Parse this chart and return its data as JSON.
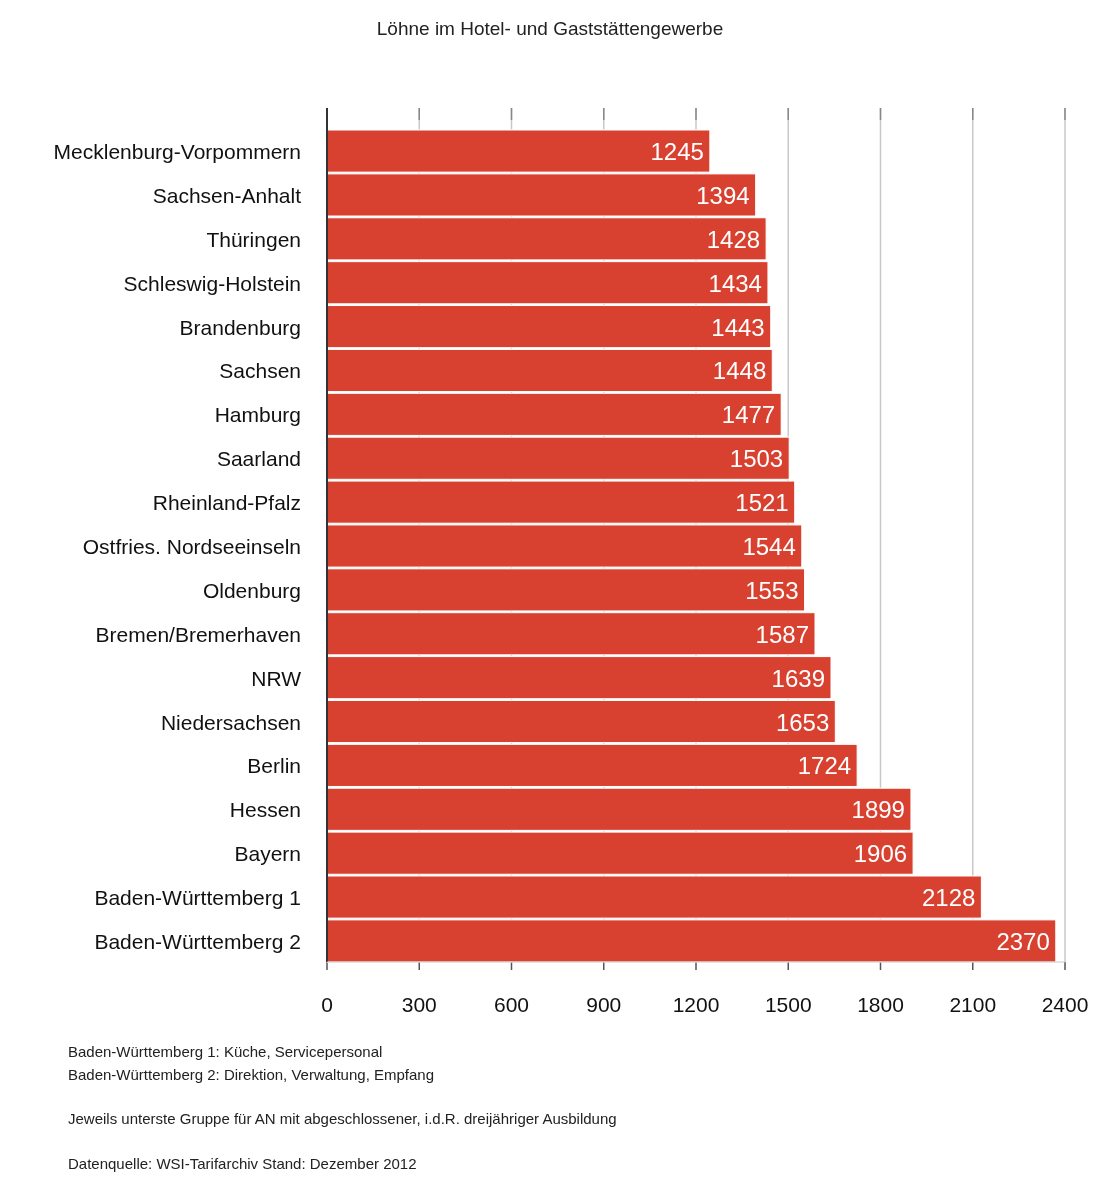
{
  "chart_data": {
    "type": "bar",
    "orientation": "horizontal",
    "title": "Löhne im Hotel- und Gaststättengewerbe",
    "categories": [
      "Mecklenburg-Vorpommern",
      "Sachsen-Anhalt",
      "Thüringen",
      "Schleswig-Holstein",
      "Brandenburg",
      "Sachsen",
      "Hamburg",
      "Saarland",
      "Rheinland-Pfalz",
      "Ostfries. Nordseeinseln",
      "Oldenburg",
      "Bremen/Bremerhaven",
      "NRW",
      "Niedersachsen",
      "Berlin",
      "Hessen",
      "Bayern",
      "Baden-Württemberg 1",
      "Baden-Württemberg 2"
    ],
    "values": [
      1245,
      1394,
      1428,
      1434,
      1443,
      1448,
      1477,
      1503,
      1521,
      1544,
      1553,
      1587,
      1639,
      1653,
      1724,
      1899,
      1906,
      2128,
      2370
    ],
    "color": "#d8412f",
    "data_labels": true,
    "grid": "x",
    "xlim": [
      0,
      2400
    ],
    "xticks": [
      0,
      300,
      600,
      900,
      1200,
      1500,
      1800,
      2100,
      2400
    ],
    "annotations": [
      "Baden-Württemberg 1: Küche, Servicepersonal",
      "Baden-Württemberg 2: Direktion, Verwaltung, Empfang",
      "Jeweils unterste Gruppe für AN mit abgeschlossener, i.d.R. dreijähriger Ausbildung",
      "Datenquelle: WSI-Tarifarchiv Stand: Dezember 2012"
    ]
  }
}
